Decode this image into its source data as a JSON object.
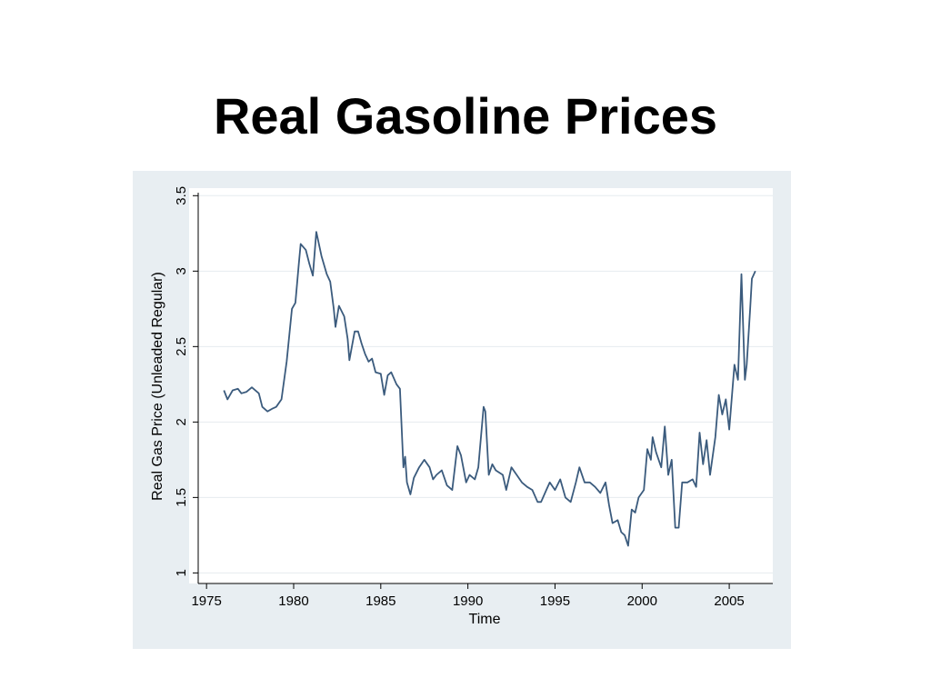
{
  "chart_data": {
    "type": "line",
    "title": "Real Gasoline Prices",
    "xlabel": "Time",
    "ylabel": "Real Gas Price (Unleaded Regular)",
    "xlim": [
      1974,
      2007.5
    ],
    "ylim": [
      0.93,
      3.55
    ],
    "xticks": [
      1975,
      1980,
      1985,
      1990,
      1995,
      2000,
      2005
    ],
    "yticks": [
      1,
      1.5,
      2,
      2.5,
      3,
      3.5
    ],
    "grid": true,
    "x": [
      1976.0,
      1976.2,
      1976.5,
      1976.8,
      1977.0,
      1977.3,
      1977.6,
      1978.0,
      1978.2,
      1978.5,
      1978.8,
      1979.0,
      1979.3,
      1979.6,
      1979.9,
      1980.1,
      1980.3,
      1980.4,
      1980.7,
      1980.9,
      1981.1,
      1981.3,
      1981.6,
      1981.9,
      1982.1,
      1982.3,
      1982.4,
      1982.6,
      1982.9,
      1983.1,
      1983.2,
      1983.5,
      1983.7,
      1983.9,
      1984.1,
      1984.3,
      1984.5,
      1984.7,
      1985.0,
      1985.2,
      1985.4,
      1985.6,
      1985.9,
      1986.1,
      1986.3,
      1986.4,
      1986.5,
      1986.7,
      1986.9,
      1987.2,
      1987.5,
      1987.8,
      1988.0,
      1988.2,
      1988.5,
      1988.8,
      1989.1,
      1989.4,
      1989.6,
      1989.9,
      1990.1,
      1990.4,
      1990.6,
      1990.9,
      1991.0,
      1991.2,
      1991.4,
      1991.6,
      1992.0,
      1992.2,
      1992.5,
      1992.8,
      1993.1,
      1993.4,
      1993.7,
      1994.0,
      1994.2,
      1994.5,
      1994.7,
      1995.0,
      1995.3,
      1995.6,
      1995.9,
      1996.2,
      1996.4,
      1996.7,
      1997.0,
      1997.3,
      1997.6,
      1997.9,
      1998.1,
      1998.3,
      1998.6,
      1998.8,
      1999.0,
      1999.2,
      1999.4,
      1999.6,
      1999.8,
      2000.1,
      2000.3,
      2000.5,
      2000.6,
      2000.8,
      2001.1,
      2001.3,
      2001.5,
      2001.7,
      2001.9,
      2002.1,
      2002.3,
      2002.6,
      2002.9,
      2003.1,
      2003.3,
      2003.5,
      2003.7,
      2003.9,
      2004.2,
      2004.4,
      2004.6,
      2004.8,
      2005.0,
      2005.3,
      2005.5,
      2005.7,
      2005.9,
      2006.0,
      2006.2,
      2006.3,
      2006.5
    ],
    "series": [
      {
        "name": "Real Gas Price",
        "color": "#3b5b7d",
        "values": [
          2.21,
          2.15,
          2.21,
          2.22,
          2.19,
          2.2,
          2.23,
          2.19,
          2.1,
          2.07,
          2.09,
          2.1,
          2.15,
          2.4,
          2.75,
          2.79,
          3.05,
          3.18,
          3.14,
          3.05,
          2.97,
          3.26,
          3.1,
          2.98,
          2.93,
          2.75,
          2.63,
          2.77,
          2.7,
          2.55,
          2.41,
          2.6,
          2.6,
          2.52,
          2.45,
          2.4,
          2.42,
          2.33,
          2.32,
          2.18,
          2.31,
          2.33,
          2.25,
          2.22,
          1.7,
          1.77,
          1.6,
          1.52,
          1.63,
          1.7,
          1.75,
          1.7,
          1.62,
          1.65,
          1.68,
          1.58,
          1.55,
          1.84,
          1.78,
          1.6,
          1.65,
          1.62,
          1.7,
          2.1,
          2.07,
          1.65,
          1.72,
          1.68,
          1.65,
          1.55,
          1.7,
          1.65,
          1.6,
          1.57,
          1.55,
          1.47,
          1.47,
          1.55,
          1.6,
          1.55,
          1.62,
          1.5,
          1.47,
          1.6,
          1.7,
          1.6,
          1.6,
          1.57,
          1.53,
          1.6,
          1.45,
          1.33,
          1.35,
          1.27,
          1.25,
          1.18,
          1.42,
          1.4,
          1.5,
          1.55,
          1.82,
          1.75,
          1.9,
          1.8,
          1.7,
          1.97,
          1.65,
          1.75,
          1.3,
          1.3,
          1.6,
          1.6,
          1.62,
          1.57,
          1.93,
          1.72,
          1.88,
          1.65,
          1.9,
          2.18,
          2.05,
          2.15,
          1.95,
          2.38,
          2.28,
          2.98,
          2.28,
          2.38,
          2.75,
          2.95,
          3.0
        ]
      }
    ]
  }
}
